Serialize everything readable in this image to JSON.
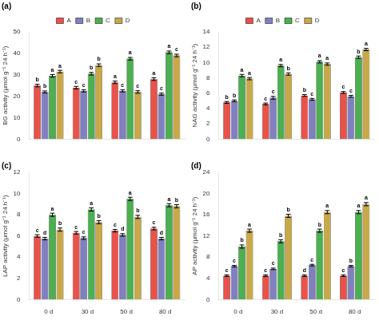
{
  "chart_data": [
    {
      "type": "bar",
      "title": "(a)",
      "ylabel": "BG activity (μmol g⁻¹ 24 h⁻¹)",
      "categories": [
        null,
        null,
        null,
        null
      ],
      "series": [
        {
          "name": "A",
          "color": "#E8524A",
          "values": [
            25.0,
            24.0,
            26.5,
            28.0
          ],
          "errors": [
            0.6,
            0.6,
            0.6,
            0.6
          ],
          "letters": [
            "b",
            "c",
            "a",
            "a"
          ]
        },
        {
          "name": "B",
          "color": "#8080C0",
          "values": [
            22.0,
            22.5,
            22.5,
            21.0
          ],
          "errors": [
            0.5,
            0.5,
            0.5,
            0.5
          ],
          "letters": [
            "b",
            "c",
            "c",
            "c"
          ]
        },
        {
          "name": "C",
          "color": "#4CAF50",
          "values": [
            29.5,
            30.5,
            37.5,
            40.5
          ],
          "errors": [
            0.6,
            0.6,
            0.6,
            0.6
          ],
          "letters": [
            "a",
            "b",
            "a",
            "a"
          ]
        },
        {
          "name": "D",
          "color": "#C8A848",
          "values": [
            31.5,
            34.5,
            22.0,
            39.0
          ],
          "errors": [
            0.6,
            0.6,
            0.6,
            0.6
          ],
          "letters": [
            "a",
            "b",
            "c",
            "c"
          ]
        }
      ],
      "ylim": [
        0,
        50
      ],
      "yticks": [
        0,
        10,
        20,
        30,
        40,
        50
      ],
      "grid": false,
      "legend": "top"
    },
    {
      "type": "bar",
      "title": "(b)",
      "ylabel": "NAG activity (μmol g⁻¹ 24 h⁻¹)",
      "categories": [
        null,
        null,
        null,
        null
      ],
      "series": [
        {
          "name": "A",
          "color": "#E8524A",
          "values": [
            4.8,
            4.6,
            5.7,
            6.1
          ],
          "errors": [
            0.12,
            0.12,
            0.12,
            0.12
          ],
          "letters": [
            "b",
            "c",
            "b",
            "c"
          ]
        },
        {
          "name": "B",
          "color": "#8080C0",
          "values": [
            5.0,
            5.4,
            5.2,
            5.6
          ],
          "errors": [
            0.12,
            0.18,
            0.12,
            0.12
          ],
          "letters": [
            "b",
            "c",
            "c",
            "c"
          ]
        },
        {
          "name": "C",
          "color": "#4CAF50",
          "values": [
            8.3,
            9.6,
            10.1,
            10.7
          ],
          "errors": [
            0.15,
            0.15,
            0.15,
            0.15
          ],
          "letters": [
            "a",
            "a",
            "a",
            "b"
          ]
        },
        {
          "name": "D",
          "color": "#C8A848",
          "values": [
            7.9,
            8.5,
            9.8,
            11.7
          ],
          "errors": [
            0.15,
            0.15,
            0.15,
            0.15
          ],
          "letters": [
            "a",
            "b",
            "a",
            "a"
          ]
        }
      ],
      "ylim": [
        0,
        14
      ],
      "yticks": [
        0,
        2,
        4,
        6,
        8,
        10,
        12,
        14
      ],
      "grid": false,
      "legend": "top"
    },
    {
      "type": "bar",
      "title": "(c)",
      "ylabel": "LAP activity (μmol g⁻¹ 24 h⁻¹)",
      "categories": [
        "0 d",
        "30 d",
        "50 d",
        "80 d"
      ],
      "series": [
        {
          "name": "A",
          "color": "#E8524A",
          "values": [
            6.0,
            6.3,
            6.5,
            6.7
          ],
          "errors": [
            0.12,
            0.12,
            0.12,
            0.12
          ],
          "letters": [
            "c",
            "c",
            "c",
            "c"
          ]
        },
        {
          "name": "B",
          "color": "#8080C0",
          "values": [
            5.75,
            5.8,
            6.1,
            5.75
          ],
          "errors": [
            0.12,
            0.12,
            0.12,
            0.12
          ],
          "letters": [
            "d",
            "c",
            "d",
            "d"
          ]
        },
        {
          "name": "C",
          "color": "#4CAF50",
          "values": [
            8.0,
            8.5,
            9.5,
            8.9
          ],
          "errors": [
            0.15,
            0.15,
            0.15,
            0.15
          ],
          "letters": [
            "a",
            "a",
            "a",
            "a"
          ]
        },
        {
          "name": "D",
          "color": "#C8A848",
          "values": [
            6.6,
            7.3,
            7.8,
            8.8
          ],
          "errors": [
            0.15,
            0.15,
            0.15,
            0.15
          ],
          "letters": [
            "b",
            "b",
            "b",
            "b"
          ]
        }
      ],
      "ylim": [
        0,
        12
      ],
      "yticks": [
        0,
        2,
        4,
        6,
        8,
        10,
        12
      ],
      "grid": false
    },
    {
      "type": "bar",
      "title": "(d)",
      "ylabel": "AP activity (μmol g⁻¹ 24 h⁻¹)",
      "categories": [
        "0 d",
        "30 d",
        "50 d",
        "80 d"
      ],
      "series": [
        {
          "name": "A",
          "color": "#E8524A",
          "values": [
            4.5,
            4.5,
            4.5,
            4.5
          ],
          "errors": [
            0.15,
            0.15,
            0.15,
            0.15
          ],
          "letters": [
            "c",
            "c",
            "d",
            "c"
          ]
        },
        {
          "name": "B",
          "color": "#8080C0",
          "values": [
            6.3,
            5.8,
            6.5,
            6.3
          ],
          "errors": [
            0.15,
            0.15,
            0.15,
            0.15
          ],
          "letters": [
            "c",
            "c",
            "c",
            "b"
          ]
        },
        {
          "name": "C",
          "color": "#4CAF50",
          "values": [
            10.0,
            11.0,
            13.0,
            16.5
          ],
          "errors": [
            0.3,
            0.3,
            0.3,
            0.3
          ],
          "letters": [
            "b",
            "b",
            "b",
            "a"
          ]
        },
        {
          "name": "D",
          "color": "#C8A848",
          "values": [
            13.0,
            15.8,
            16.5,
            18.0
          ],
          "errors": [
            0.3,
            0.3,
            0.3,
            0.3
          ],
          "letters": [
            "a",
            "b",
            "a",
            "a"
          ]
        }
      ],
      "ylim": [
        0,
        24
      ],
      "yticks": [
        0,
        4,
        8,
        12,
        16,
        20,
        24
      ],
      "grid": false
    }
  ]
}
